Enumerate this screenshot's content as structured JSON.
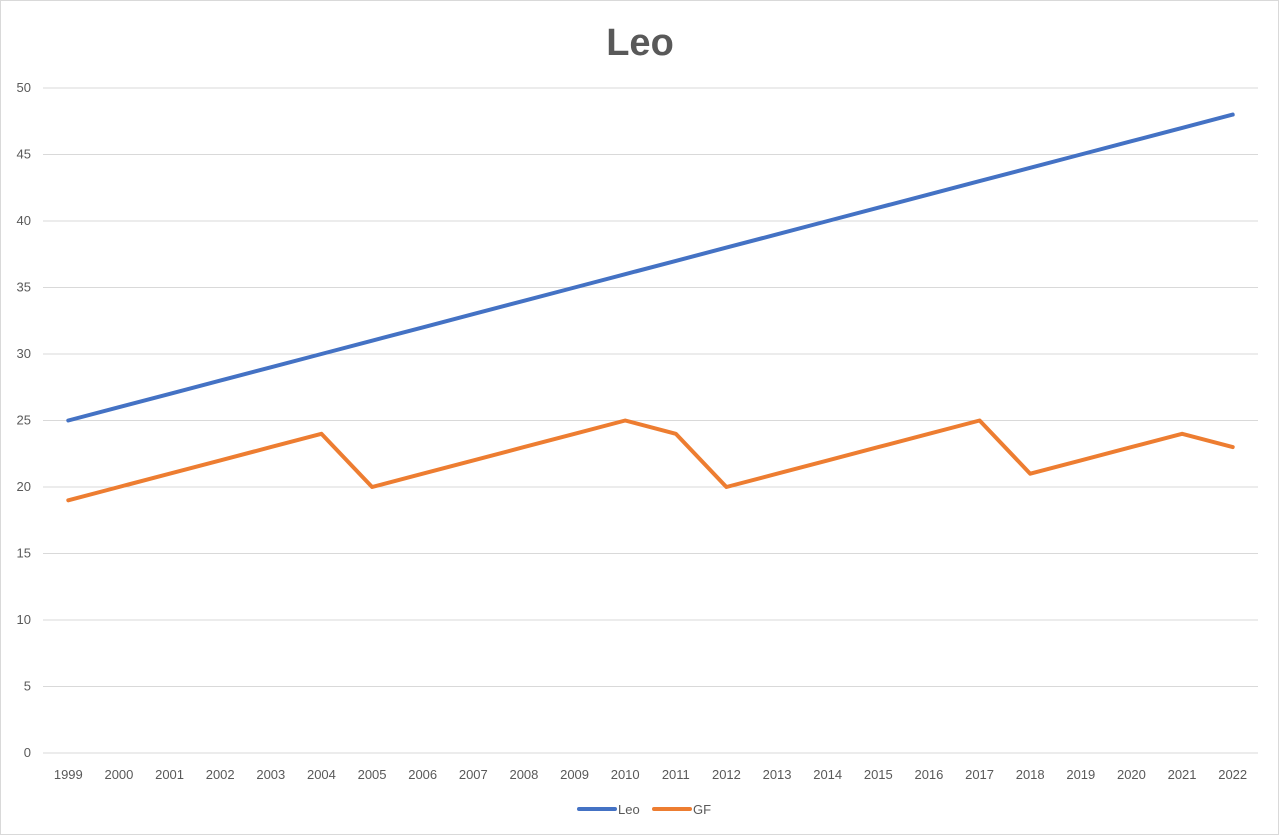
{
  "chart_data": {
    "type": "line",
    "title": "Leo",
    "xlabel": "",
    "ylabel": "",
    "ylim": [
      0,
      50
    ],
    "yticks": [
      "0",
      "5",
      "10",
      "15",
      "20",
      "25",
      "30",
      "35",
      "40",
      "45",
      "50"
    ],
    "grid": true,
    "legend_position": "bottom",
    "categories": [
      "1999",
      "2000",
      "2001",
      "2002",
      "2003",
      "2004",
      "2005",
      "2006",
      "2007",
      "2008",
      "2009",
      "2010",
      "2011",
      "2012",
      "2013",
      "2014",
      "2015",
      "2016",
      "2017",
      "2018",
      "2019",
      "2020",
      "2021",
      "2022"
    ],
    "series": [
      {
        "name": "Leo",
        "color": "#4472c4",
        "values": [
          25,
          26,
          27,
          28,
          29,
          30,
          31,
          32,
          33,
          34,
          35,
          36,
          37,
          38,
          39,
          40,
          41,
          42,
          43,
          44,
          45,
          46,
          47,
          48
        ]
      },
      {
        "name": "GF",
        "color": "#ed7d31",
        "values": [
          19,
          20,
          21,
          22,
          23,
          24,
          20,
          21,
          22,
          23,
          24,
          25,
          24,
          20,
          21,
          22,
          23,
          24,
          25,
          21,
          22,
          23,
          24,
          23
        ]
      }
    ]
  }
}
